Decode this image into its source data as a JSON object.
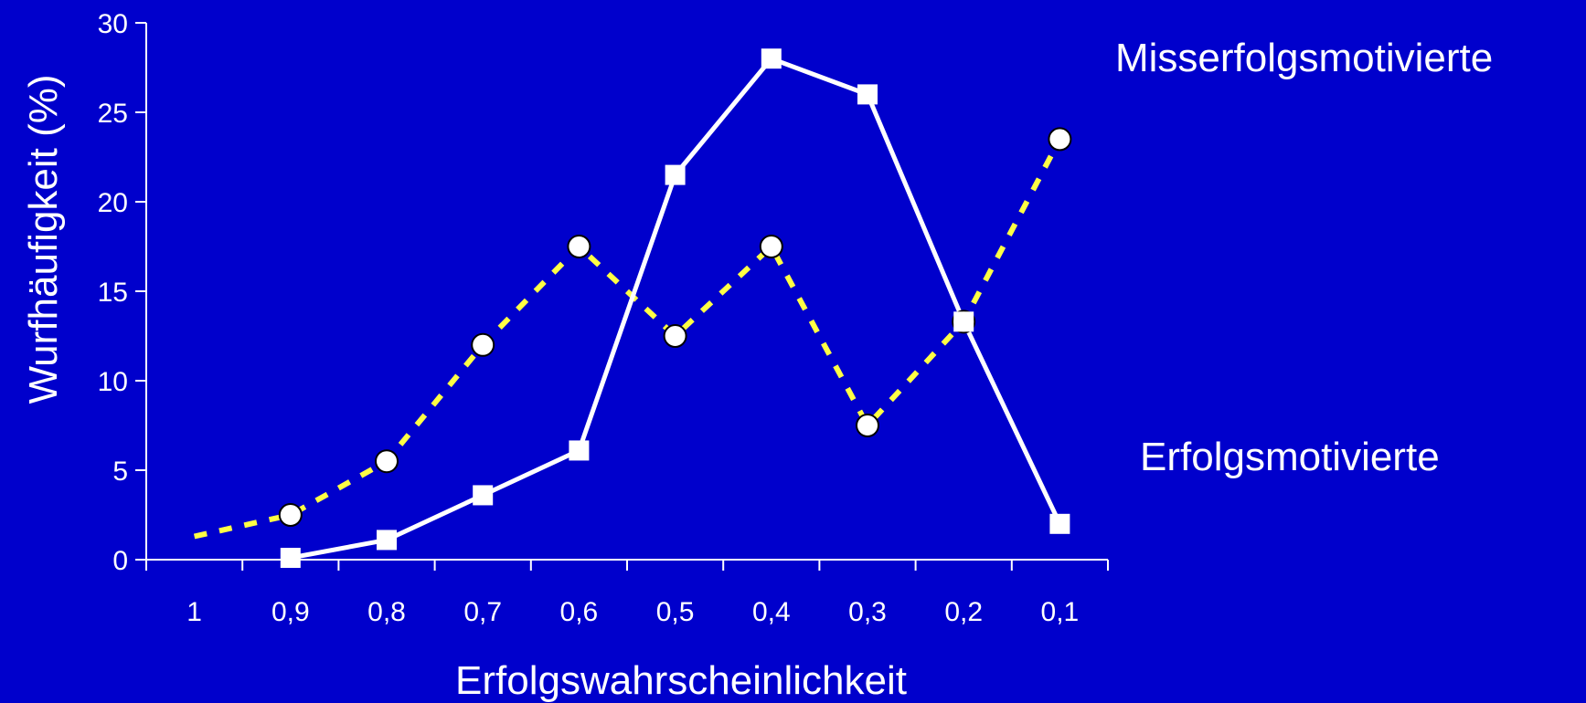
{
  "colors": {
    "background": "#0000cc",
    "axis": "#ffffff",
    "series_solid": "#ffffff",
    "series_dotted": "#ffff44",
    "marker_fill": "#ffffff",
    "marker_stroke": "#000000"
  },
  "chart_data": {
    "type": "line",
    "title": "",
    "xlabel": "Erfolgswahrscheinlichkeit",
    "ylabel": "Wurfhäufigkeit (%)",
    "ylim": [
      0,
      30
    ],
    "yticks": [
      "0",
      "5",
      "10",
      "15",
      "20",
      "25",
      "30"
    ],
    "categories": [
      "1",
      "0,9",
      "0,8",
      "0,7",
      "0,6",
      "0,5",
      "0,4",
      "0,3",
      "0,2",
      "0,1"
    ],
    "grid": false,
    "series": [
      {
        "name": "Misserfolgsmotivierte",
        "style": "solid",
        "marker": "square",
        "values": [
          null,
          0.1,
          1.1,
          3.6,
          6.1,
          21.5,
          28,
          26,
          13.3,
          2
        ]
      },
      {
        "name": "Erfolgsmotivierte",
        "style": "dotted",
        "marker": "circle",
        "values": [
          1.3,
          2.5,
          5.5,
          12,
          17.5,
          12.5,
          17.5,
          7.5,
          13.3,
          23.5
        ]
      }
    ]
  }
}
